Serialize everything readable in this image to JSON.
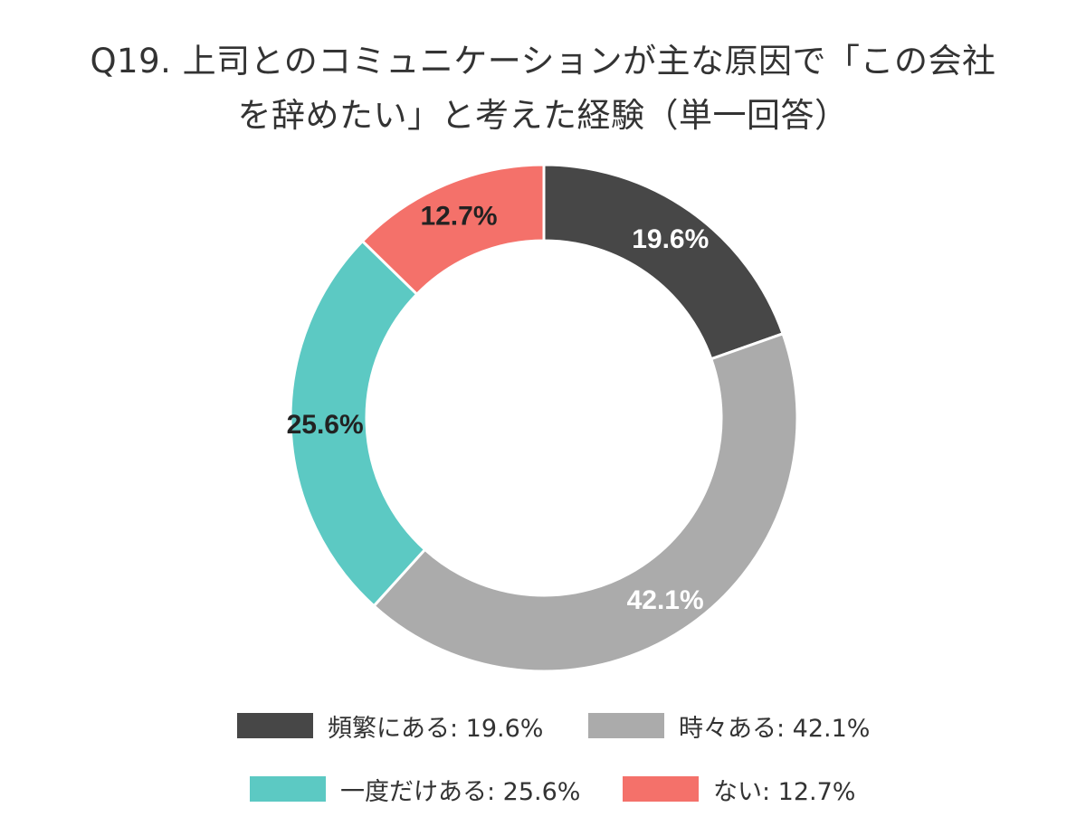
{
  "chart_data": {
    "type": "pie",
    "style": "donut",
    "title_lines": [
      "Q19. 上司とのコミュニケーションが主な原因で「この会社",
      "を辞めたい」と考えた経験（単一回答）"
    ],
    "categories": [
      "頻繁にある",
      "時々ある",
      "一度だけある",
      "ない"
    ],
    "values": [
      19.6,
      42.1,
      25.6,
      12.7
    ],
    "unit": "%",
    "slice_labels": [
      "19.6%",
      "42.1%",
      "25.6%",
      "12.7%"
    ],
    "legend_labels": [
      "頻繁にある: 19.6%",
      "時々ある: 42.1%",
      "一度だけある: 25.6%",
      "ない: 12.7%"
    ],
    "colors": [
      "#474747",
      "#ababab",
      "#5cc9c3",
      "#f4716a"
    ],
    "label_colors": [
      "#ffffff",
      "#ffffff",
      "#222222",
      "#222222"
    ],
    "legend_position": "bottom"
  }
}
